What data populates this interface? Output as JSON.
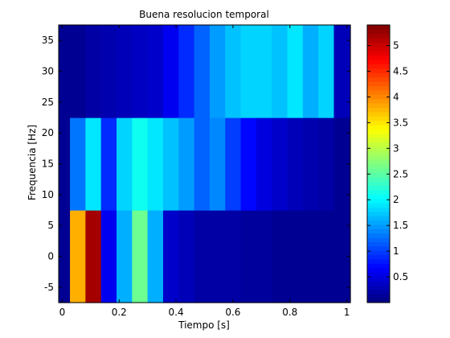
{
  "chart_data": {
    "type": "heatmap",
    "title": "Buena resolucion temporal",
    "xlabel": "Tiempo [s]",
    "ylabel": "Frequencia [Hz]",
    "xlim": [
      -0.0125,
      1.0125
    ],
    "ylim": [
      -7.5,
      37.5
    ],
    "x_ticks": [
      0,
      0.2,
      0.4,
      0.6,
      0.8,
      1
    ],
    "x_tick_labels": [
      "0",
      "0.2",
      "0.4",
      "0.6",
      "0.8",
      "1"
    ],
    "y_ticks": [
      -5,
      0,
      5,
      10,
      15,
      20,
      25,
      30,
      35
    ],
    "y_tick_labels": [
      "-5",
      "0",
      "5",
      "10",
      "15",
      "20",
      "25",
      "30",
      "35"
    ],
    "x": [
      0,
      0.0545,
      0.109,
      0.1636,
      0.2181,
      0.2727,
      0.3272,
      0.3818,
      0.4363,
      0.4909,
      0.5454,
      0.6,
      0.6545,
      0.7091,
      0.7636,
      0.8181,
      0.8727,
      0.9272,
      0.9818
    ],
    "y": [
      0,
      15,
      30
    ],
    "z": [
      [
        0.1,
        3.8,
        5.2,
        0.6,
        1.6,
        2.6,
        1.6,
        0.4,
        0.3,
        0.2,
        0.2,
        0.2,
        0.15,
        0.15,
        0.1,
        0.1,
        0.1,
        0.1,
        0.1
      ],
      [
        0.1,
        1.3,
        1.9,
        0.9,
        1.8,
        2.1,
        1.9,
        1.7,
        1.5,
        1.2,
        1.4,
        1.0,
        0.7,
        0.5,
        0.4,
        0.3,
        0.25,
        0.2,
        0.1
      ],
      [
        0.1,
        0.1,
        0.2,
        0.25,
        0.3,
        0.35,
        0.4,
        0.6,
        0.9,
        1.2,
        1.5,
        1.7,
        1.8,
        1.8,
        1.7,
        1.9,
        1.6,
        1.8,
        0.3
      ]
    ],
    "colorbar": {
      "range": [
        0,
        5.4
      ],
      "ticks": [
        0.5,
        1,
        1.5,
        2,
        2.5,
        3,
        3.5,
        4,
        4.5,
        5
      ],
      "tick_labels": [
        "0.5",
        "1",
        "1.5",
        "2",
        "2.5",
        "3",
        "3.5",
        "4",
        "4.5",
        "5"
      ]
    },
    "colormap": "jet",
    "grid": false
  }
}
